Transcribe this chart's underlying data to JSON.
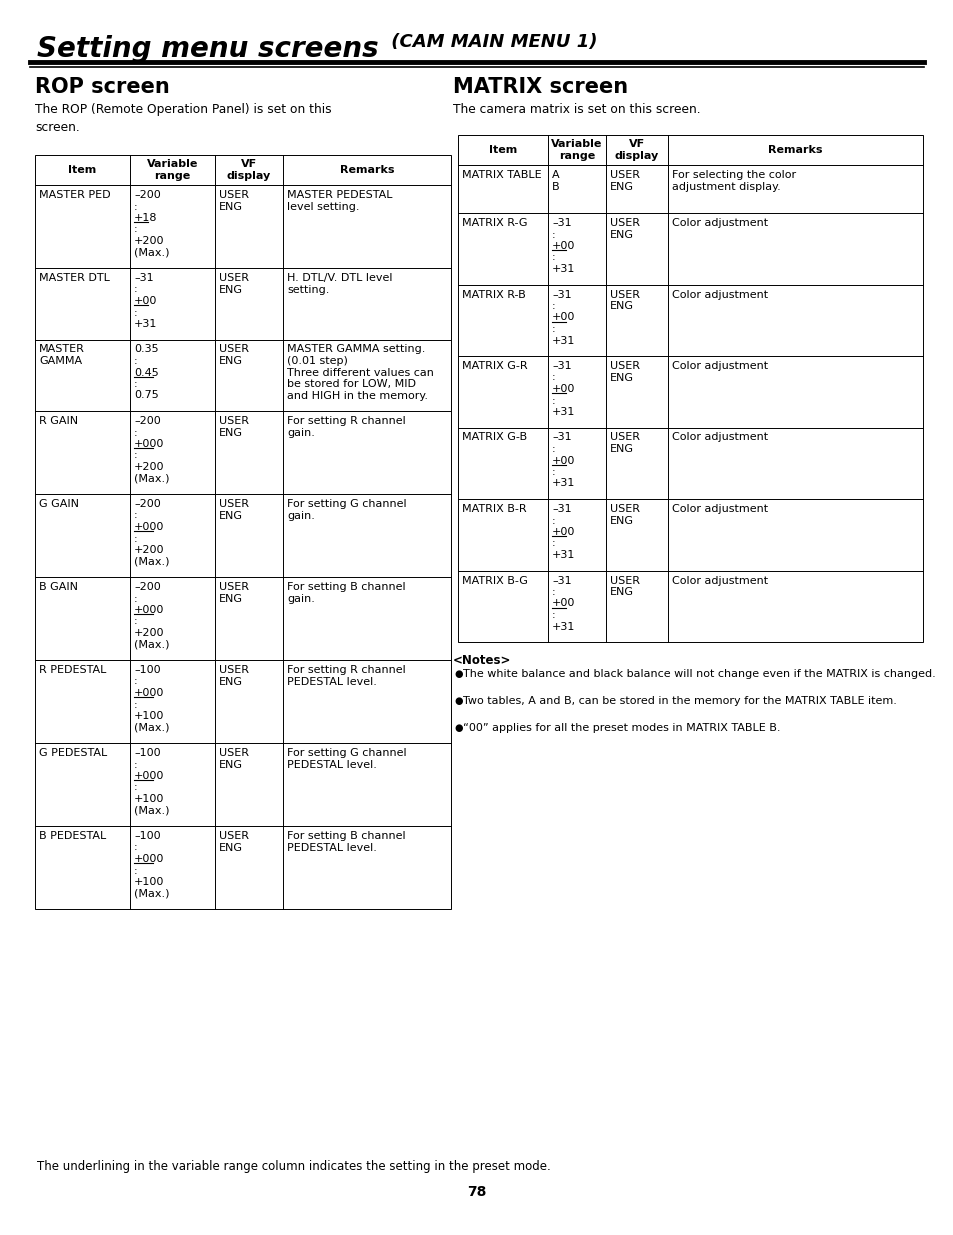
{
  "title_italic": "Setting menu screens",
  "title_normal": " (CAM MAIN MENU 1)",
  "bg_color": "#ffffff",
  "text_color": "#000000",
  "page_number": "78",
  "rop_section_title": "ROP screen",
  "rop_intro": "The ROP (Remote Operation Panel) is set on this\nscreen.",
  "rop_headers": [
    "Item",
    "Variable\nrange",
    "VF\ndisplay",
    "Remarks"
  ],
  "rop_rows": [
    {
      "item": "MASTER PED",
      "variable": "–200\n:\n+18\n:\n+200\n(Max.)",
      "variable_underline": "+18",
      "vf": "USER\nENG",
      "remarks": "MASTER PEDESTAL\nlevel setting."
    },
    {
      "item": "MASTER DTL",
      "variable": "–31\n:\n+00\n:\n+31",
      "variable_underline": "+00",
      "vf": "USER\nENG",
      "remarks": "H. DTL/V. DTL level\nsetting."
    },
    {
      "item": "MASTER\nGAMMA",
      "variable": "0.35\n:\n0.45\n:\n0.75",
      "variable_underline": "0.45",
      "vf": "USER\nENG",
      "remarks": "MASTER GAMMA setting.\n(0.01 step)\nThree different values can\nbe stored for LOW, MID\nand HIGH in the memory."
    },
    {
      "item": "R GAIN",
      "variable": "–200\n:\n+000\n:\n+200\n(Max.)",
      "variable_underline": "+000",
      "vf": "USER\nENG",
      "remarks": "For setting R channel\ngain."
    },
    {
      "item": "G GAIN",
      "variable": "–200\n:\n+000\n:\n+200\n(Max.)",
      "variable_underline": "+000",
      "vf": "USER\nENG",
      "remarks": "For setting G channel\ngain."
    },
    {
      "item": "B GAIN",
      "variable": "–200\n:\n+000\n:\n+200\n(Max.)",
      "variable_underline": "+000",
      "vf": "USER\nENG",
      "remarks": "For setting B channel\ngain."
    },
    {
      "item": "R PEDESTAL",
      "variable": "–100\n:\n+000\n:\n+100\n(Max.)",
      "variable_underline": "+000",
      "vf": "USER\nENG",
      "remarks": "For setting R channel\nPEDESTAL level."
    },
    {
      "item": "G PEDESTAL",
      "variable": "–100\n:\n+000\n:\n+100\n(Max.)",
      "variable_underline": "+000",
      "vf": "USER\nENG",
      "remarks": "For setting G channel\nPEDESTAL level."
    },
    {
      "item": "B PEDESTAL",
      "variable": "–100\n:\n+000\n:\n+100\n(Max.)",
      "variable_underline": "+000",
      "vf": "USER\nENG",
      "remarks": "For setting B channel\nPEDESTAL level."
    }
  ],
  "matrix_section_title": "MATRIX screen",
  "matrix_intro": "The camera matrix is set on this screen.",
  "matrix_headers": [
    "Item",
    "Variable\nrange",
    "VF\ndisplay",
    "Remarks"
  ],
  "matrix_rows": [
    {
      "item": "MATRIX TABLE",
      "variable": "A\nB",
      "variable_underline": "",
      "vf": "USER\nENG",
      "remarks": "For selecting the color\nadjustment display."
    },
    {
      "item": "MATRIX R-G",
      "variable": "–31\n:\n+00\n:\n+31",
      "variable_underline": "+00",
      "vf": "USER\nENG",
      "remarks": "Color adjustment"
    },
    {
      "item": "MATRIX R-B",
      "variable": "–31\n:\n+00\n:\n+31",
      "variable_underline": "+00",
      "vf": "USER\nENG",
      "remarks": "Color adjustment"
    },
    {
      "item": "MATRIX G-R",
      "variable": "–31\n:\n+00\n:\n+31",
      "variable_underline": "+00",
      "vf": "USER\nENG",
      "remarks": "Color adjustment"
    },
    {
      "item": "MATRIX G-B",
      "variable": "–31\n:\n+00\n:\n+31",
      "variable_underline": "+00",
      "vf": "USER\nENG",
      "remarks": "Color adjustment"
    },
    {
      "item": "MATRIX B-R",
      "variable": "–31\n:\n+00\n:\n+31",
      "variable_underline": "+00",
      "vf": "USER\nENG",
      "remarks": "Color adjustment"
    },
    {
      "item": "MATRIX B-G",
      "variable": "–31\n:\n+00\n:\n+31",
      "variable_underline": "+00",
      "vf": "USER\nENG",
      "remarks": "Color adjustment"
    }
  ],
  "notes_header": "<Notes>",
  "notes": [
    "The white balance and black balance will not change even if the MATRIX is changed.",
    "Two tables, A and B, can be stored in the memory for the MATRIX TABLE item.",
    "“00” applies for all the preset modes in MATRIX TABLE B."
  ],
  "footer": "The underlining in the variable range column indicates the setting in the preset mode."
}
